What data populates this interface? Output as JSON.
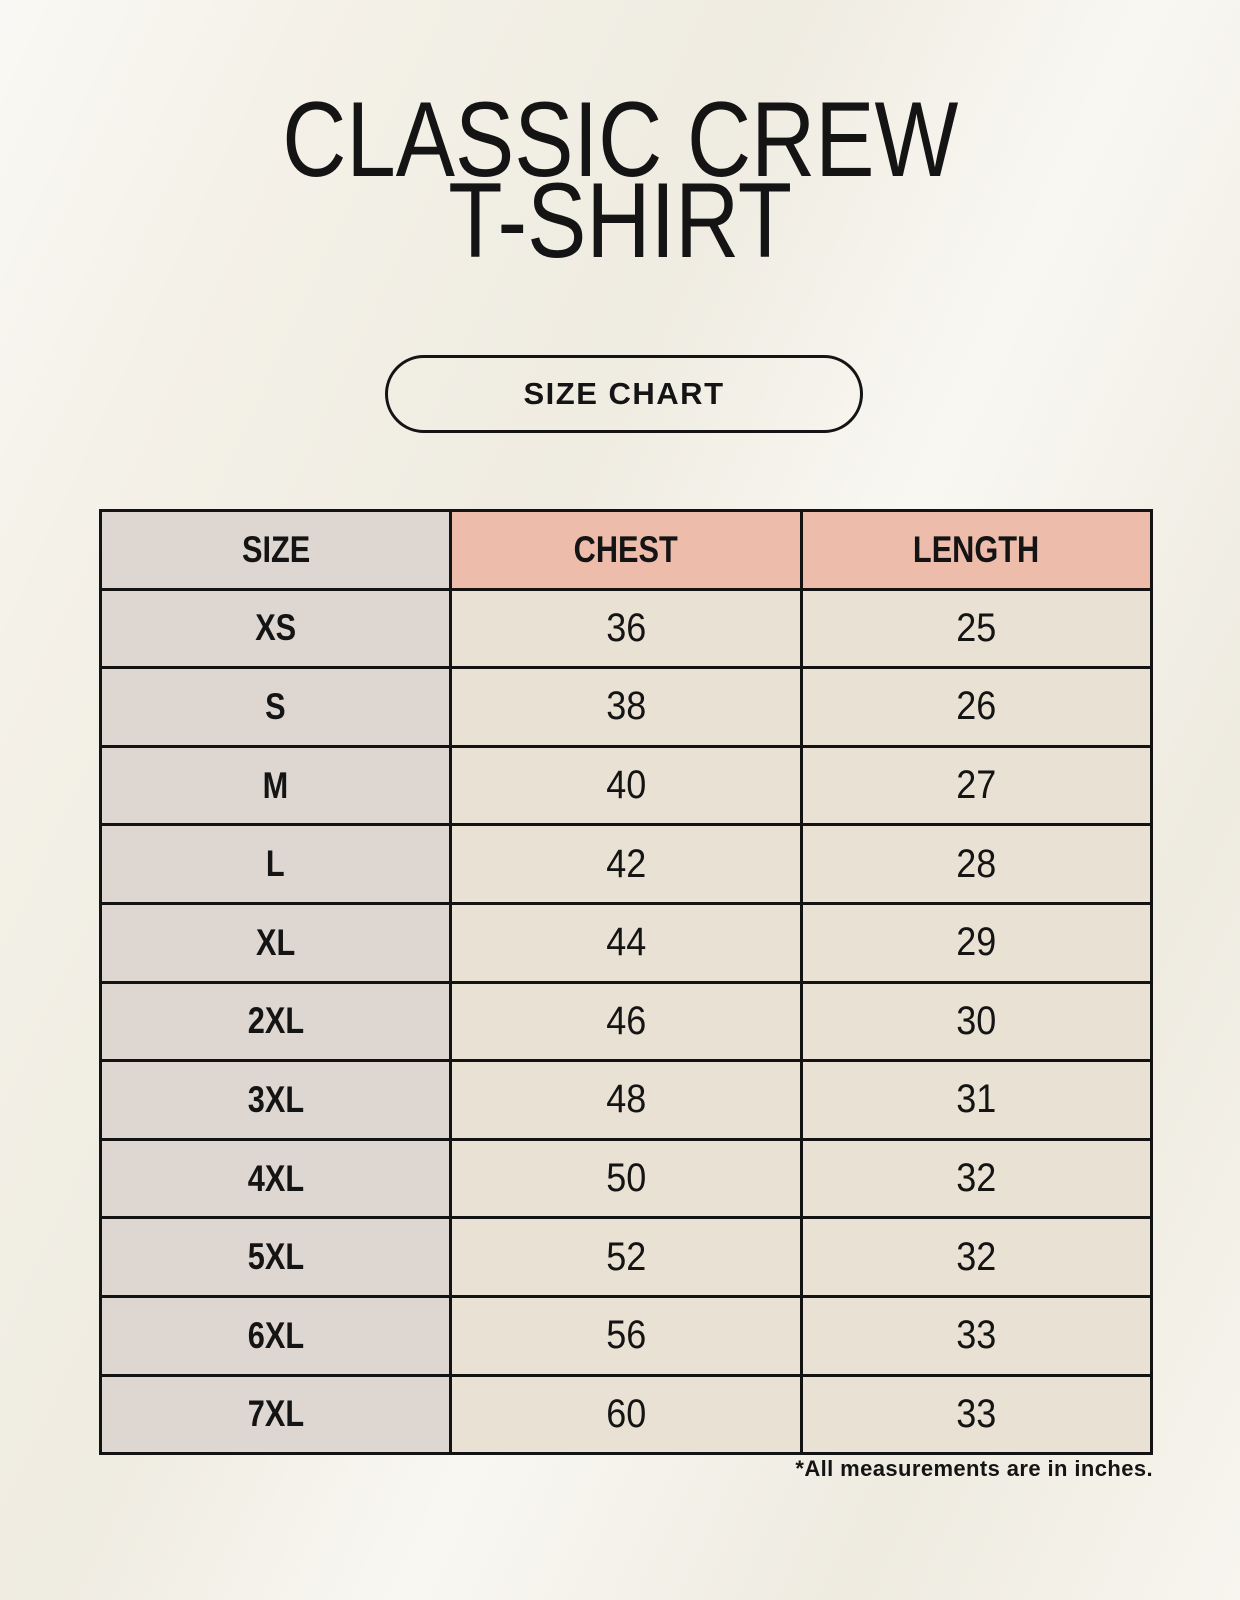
{
  "header": {
    "title_line1": "CLASSIC CREW",
    "title_line2": "T-SHIRT",
    "badge_label": "SIZE CHART"
  },
  "footnote": "*All measurements are in inches.",
  "colors": {
    "background": "#f4f1e8",
    "table_border": "#131313",
    "size_column_bg": "#ded7d1",
    "header_accent_bg": "#eebcab",
    "value_cell_bg": "#e9e2d4",
    "text": "#141414"
  },
  "chart_data": {
    "type": "table",
    "title": "CLASSIC CREW T-SHIRT",
    "columns": [
      "SIZE",
      "CHEST",
      "LENGTH"
    ],
    "rows": [
      [
        "XS",
        "36",
        "25"
      ],
      [
        "S",
        "38",
        "26"
      ],
      [
        "M",
        "40",
        "27"
      ],
      [
        "L",
        "42",
        "28"
      ],
      [
        "XL",
        "44",
        "29"
      ],
      [
        "2XL",
        "46",
        "30"
      ],
      [
        "3XL",
        "48",
        "31"
      ],
      [
        "4XL",
        "50",
        "32"
      ],
      [
        "5XL",
        "52",
        "32"
      ],
      [
        "6XL",
        "56",
        "33"
      ],
      [
        "7XL",
        "60",
        "33"
      ]
    ],
    "units": "inches",
    "layout": "3 equal columns, header row tinted; SIZE column gray, value cells cream"
  }
}
